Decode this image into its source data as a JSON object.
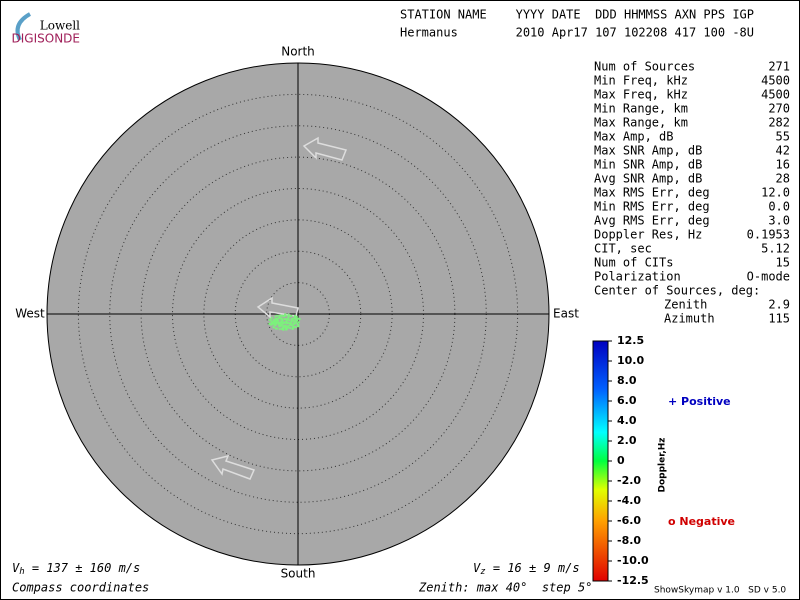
{
  "logo": {
    "top": "Lowell",
    "bottom": "DIGISONDE"
  },
  "header": {
    "line1": "STATION NAME    YYYY DATE  DDD HHMMSS AXN PPS IGP",
    "line2": "Hermanus        2010 Apr17 107 102208 417 100 -8U"
  },
  "compass": {
    "north": "North",
    "south": "South",
    "west": "West",
    "east": "East"
  },
  "stats": [
    [
      "Num of Sources",
      "271"
    ],
    [
      "Min Freq, kHz",
      "4500"
    ],
    [
      "Max Freq, kHz",
      "4500"
    ],
    [
      "Min Range, km",
      "270"
    ],
    [
      "Max Range, km",
      "282"
    ],
    [
      "Max Amp, dB",
      "55"
    ],
    [
      "Max SNR Amp, dB",
      "42"
    ],
    [
      "Min SNR Amp, dB",
      "16"
    ],
    [
      "Avg SNR Amp, dB",
      "28"
    ],
    [
      "Max RMS Err, deg",
      "12.0"
    ],
    [
      "Min RMS Err, deg",
      "0.0"
    ],
    [
      "Avg RMS Err, deg",
      "3.0"
    ],
    [
      "Doppler Res, Hz",
      "0.1953"
    ],
    [
      "CIT, sec",
      "5.12"
    ],
    [
      "Num of CITs",
      "15"
    ],
    [
      "Polarization",
      "O-mode"
    ],
    [
      "Center of Sources, deg:",
      ""
    ]
  ],
  "center": [
    [
      "Zenith",
      "2.9"
    ],
    [
      "Azimuth",
      "115"
    ]
  ],
  "colorbar": {
    "labels": [
      "12.5",
      "10.0",
      "8.0",
      "6.0",
      "4.0",
      "2.0",
      "0",
      "-2.0",
      "-4.0",
      "-6.0",
      "-8.0",
      "-10.0",
      "-12.5"
    ],
    "title": "Doppler,Hz",
    "positive": "+ Positive",
    "negative": "o Negative"
  },
  "footer": {
    "vh_symbol": "V",
    "vh_sub": "h",
    "vh_text": " = 137 ± 160 m/s",
    "vz_symbol": "V",
    "vz_sub": "z",
    "vz_text": " = 16 ± 9 m/s",
    "coords": "Compass coordinates",
    "zenith": "Zenith: max 40°  step 5°",
    "version": "ShowSkymap v 1.0   SD v 5.0"
  }
}
